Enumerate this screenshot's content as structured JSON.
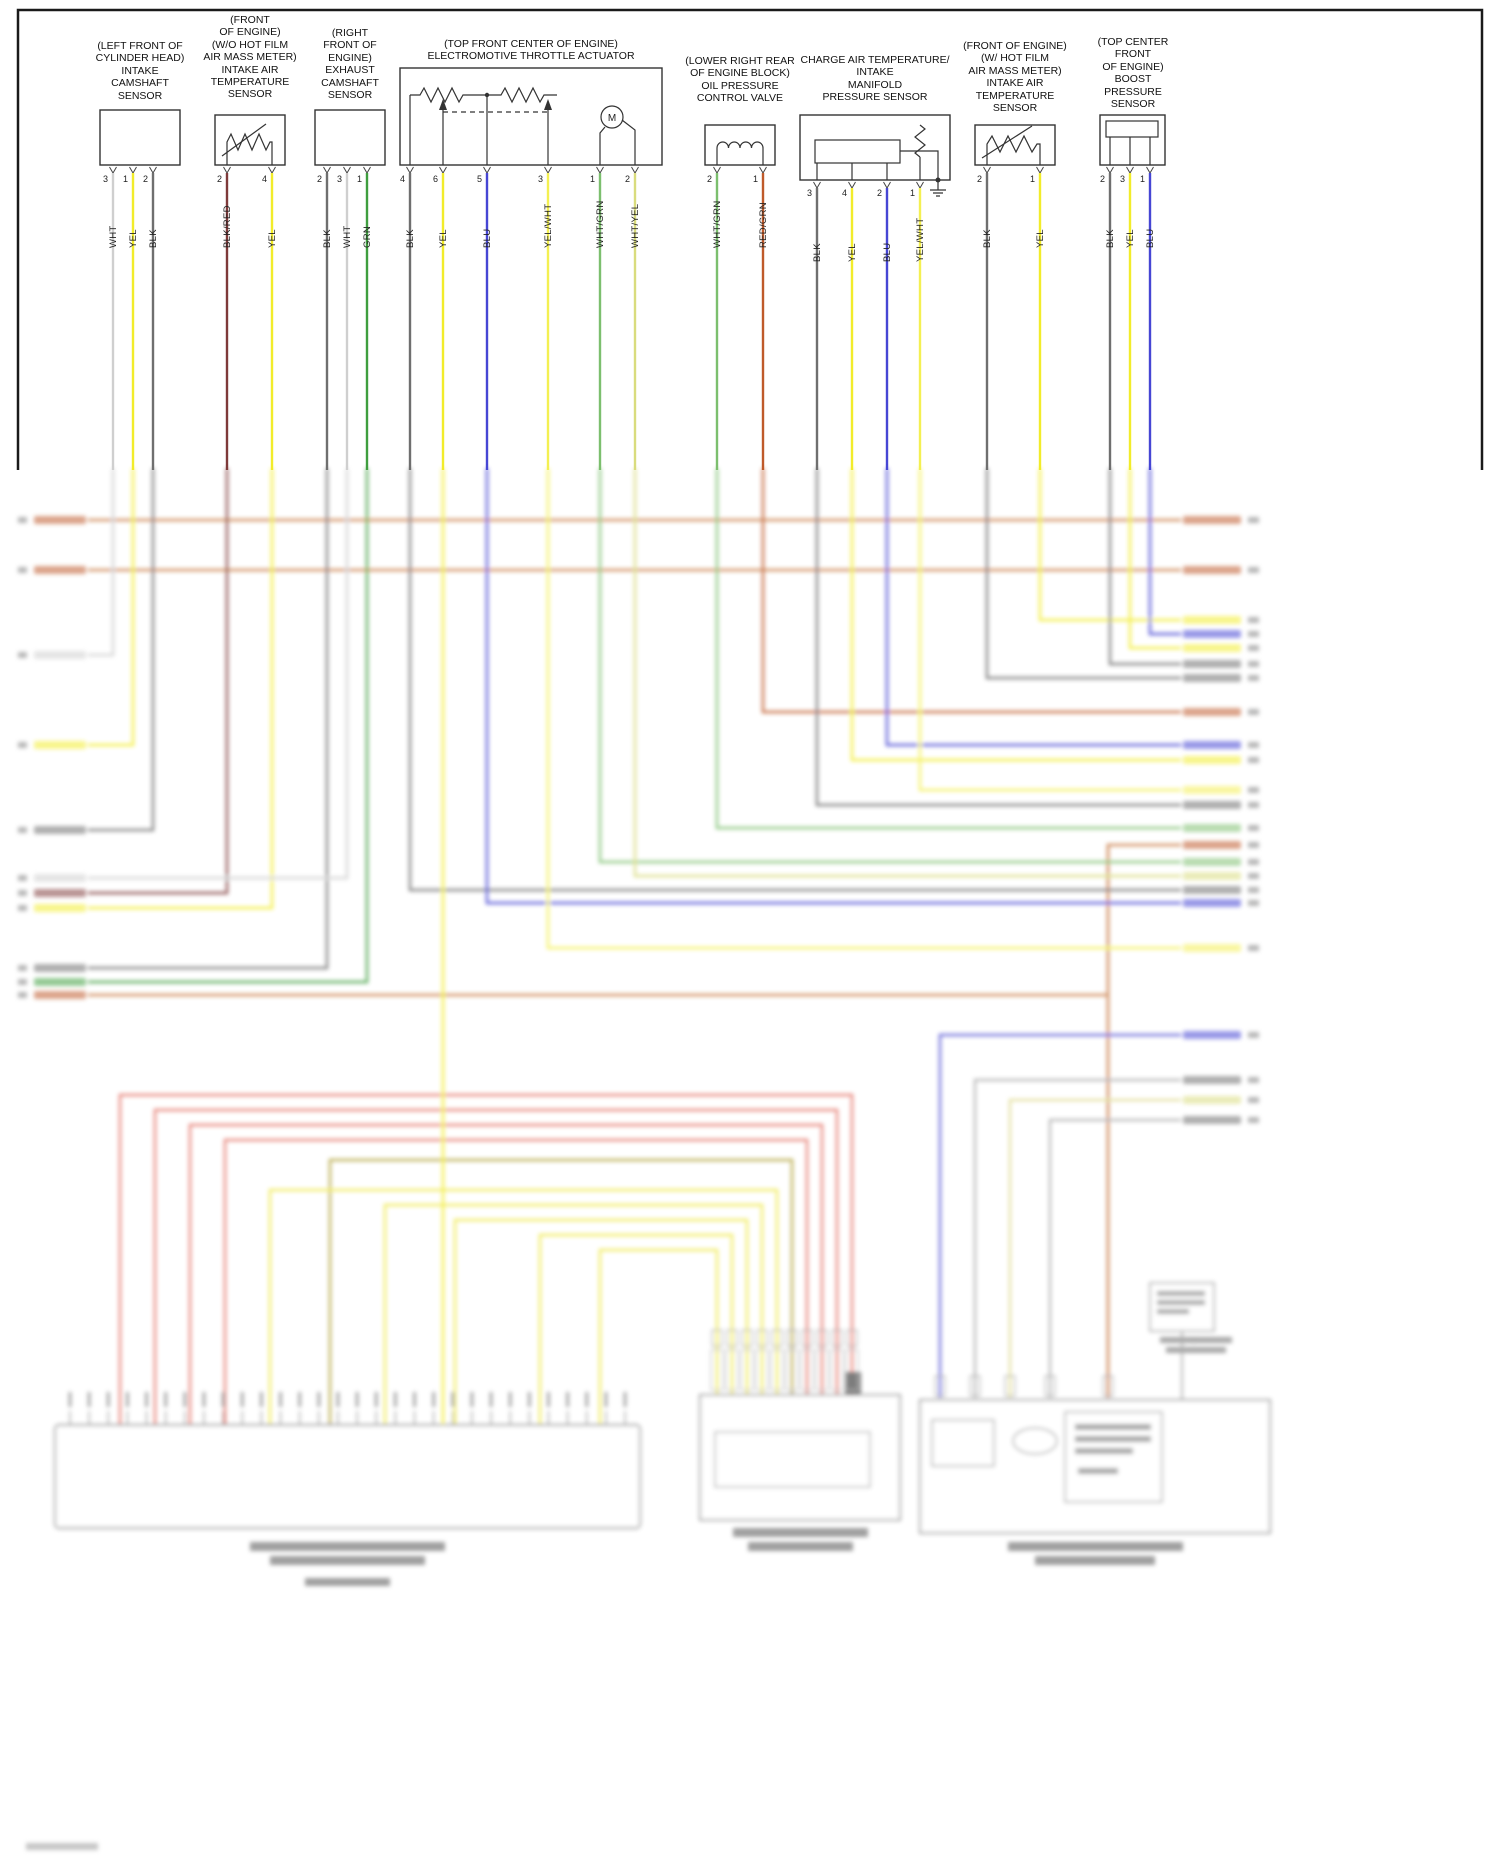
{
  "diagram": {
    "sensors": [
      {
        "label": "(LEFT FRONT OF\nCYLINDER HEAD)\nINTAKE\nCAMSHAFT\nSENSOR",
        "pins": [
          {
            "num": "3",
            "color": "WHT"
          },
          {
            "num": "1",
            "color": "YEL"
          },
          {
            "num": "2",
            "color": "BLK"
          }
        ]
      },
      {
        "label": "(FRONT\nOF ENGINE)\n(W/O HOT FILM\nAIR MASS METER)\nINTAKE AIR\nTEMPERATURE\nSENSOR",
        "pins": [
          {
            "num": "2",
            "color": "BLK/RED"
          },
          {
            "num": "4",
            "color": "YEL"
          }
        ]
      },
      {
        "label": "(RIGHT\nFRONT OF\nENGINE)\nEXHAUST\nCAMSHAFT\nSENSOR",
        "pins": [
          {
            "num": "2",
            "color": "BLK"
          },
          {
            "num": "3",
            "color": "WHT"
          },
          {
            "num": "1",
            "color": "GRN"
          }
        ]
      },
      {
        "label": "(TOP FRONT CENTER OF ENGINE)\nELECTROMOTIVE THROTTLE ACTUATOR",
        "motor_label": "M",
        "pins": [
          {
            "num": "4",
            "color": "BLK"
          },
          {
            "num": "6",
            "color": "YEL"
          },
          {
            "num": "5",
            "color": "BLU"
          },
          {
            "num": "3",
            "color": "YEL/WHT"
          },
          {
            "num": "1",
            "color": "WHT/GRN"
          },
          {
            "num": "2",
            "color": "WHT/YEL"
          }
        ]
      },
      {
        "label": "(LOWER RIGHT REAR\nOF ENGINE BLOCK)\nOIL PRESSURE\nCONTROL VALVE",
        "pins": [
          {
            "num": "2",
            "color": "WHT/GRN"
          },
          {
            "num": "1",
            "color": "RED/GRN"
          }
        ]
      },
      {
        "label": "CHARGE AIR TEMPERATURE/\nINTAKE\nMANIFOLD\nPRESSURE SENSOR",
        "pins": [
          {
            "num": "3",
            "color": "BLK"
          },
          {
            "num": "4",
            "color": "YEL"
          },
          {
            "num": "2",
            "color": "BLU"
          },
          {
            "num": "1",
            "color": "YEL/WHT"
          }
        ]
      },
      {
        "label": "(FRONT OF ENGINE)\n(W/ HOT FILM\nAIR MASS METER)\nINTAKE AIR\nTEMPERATURE\nSENSOR",
        "pins": [
          {
            "num": "2",
            "color": "BLK"
          },
          {
            "num": "1",
            "color": "YEL"
          }
        ]
      },
      {
        "label": "(TOP CENTER\nFRONT\nOF ENGINE)\nBOOST\nPRESSURE\nSENSOR",
        "pins": [
          {
            "num": "2",
            "color": "BLK"
          },
          {
            "num": "3",
            "color": "YEL"
          },
          {
            "num": "1",
            "color": "BLU"
          }
        ]
      }
    ],
    "wire_colors": {
      "WHT": "#cfcfcf",
      "YEL": "#f2ec2a",
      "BLK": "#6f6f6f",
      "BLK/RED": "#7e3a3a",
      "GRN": "#3f9e3f",
      "BLU": "#4646d4",
      "YEL/WHT": "#f4f052",
      "WHT/GRN": "#7cbf6e",
      "WHT/YEL": "#d9dc7d",
      "RED/GRN": "#bf5a2a"
    }
  }
}
